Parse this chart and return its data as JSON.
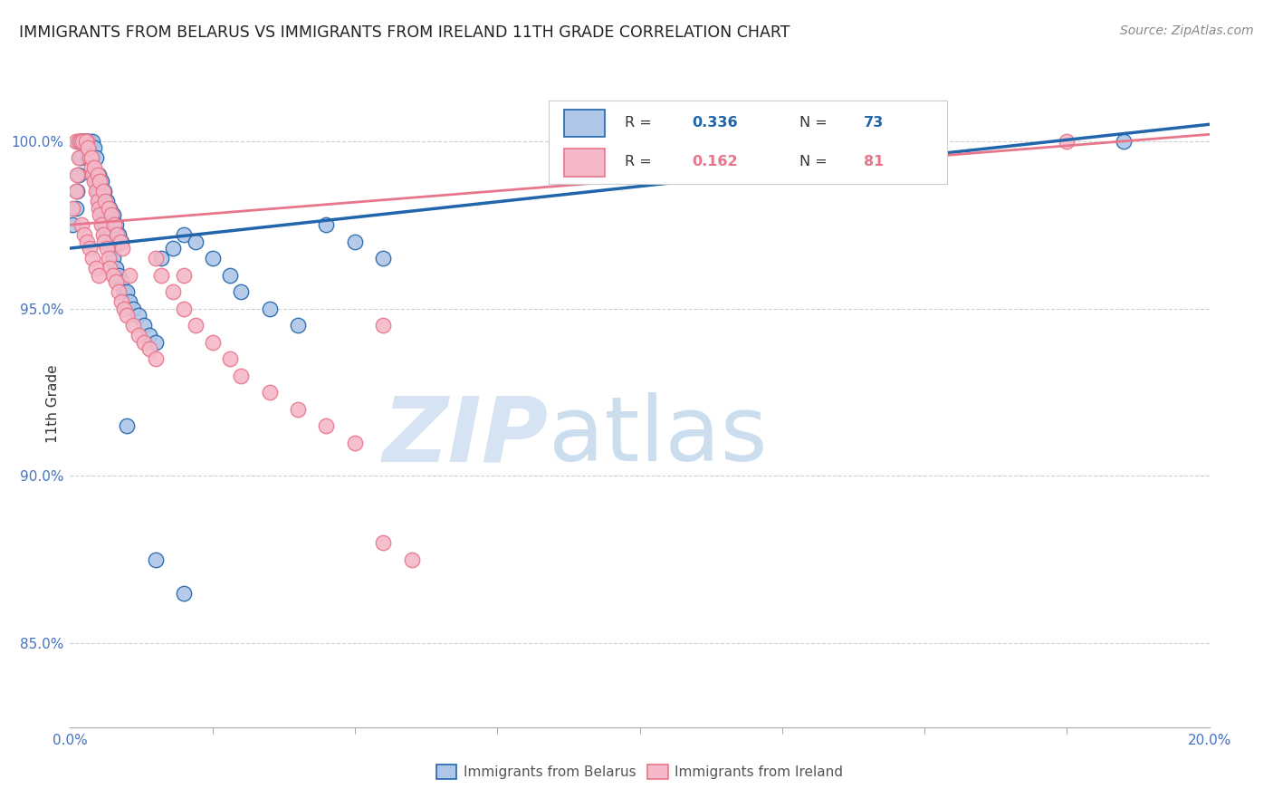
{
  "title": "IMMIGRANTS FROM BELARUS VS IMMIGRANTS FROM IRELAND 11TH GRADE CORRELATION CHART",
  "source": "Source: ZipAtlas.com",
  "ylabel": "11th Grade",
  "color_belarus": "#aec6e8",
  "color_ireland": "#f4b8c8",
  "color_line_belarus": "#2166ac",
  "color_line_ireland": "#e8768a",
  "color_ytick": "#4472c4",
  "watermark_zip": "ZIP",
  "watermark_atlas": "atlas",
  "xlim": [
    0.0,
    20.0
  ],
  "ylim": [
    82.5,
    101.8
  ],
  "ytick_vals": [
    85.0,
    90.0,
    95.0,
    100.0
  ],
  "ytick_labels": [
    "85.0%",
    "90.0%",
    "95.0%",
    "100.0%"
  ],
  "belarus_trend_x0": 0.0,
  "belarus_trend_y0": 96.8,
  "belarus_trend_x1": 20.0,
  "belarus_trend_y1": 100.5,
  "ireland_trend_x0": 0.0,
  "ireland_trend_y0": 97.5,
  "ireland_trend_x1": 20.0,
  "ireland_trend_y1": 100.2,
  "belarus_x": [
    0.05,
    0.1,
    0.12,
    0.15,
    0.18,
    0.2,
    0.22,
    0.25,
    0.28,
    0.3,
    0.32,
    0.35,
    0.38,
    0.4,
    0.42,
    0.45,
    0.48,
    0.5,
    0.52,
    0.55,
    0.58,
    0.6,
    0.65,
    0.68,
    0.7,
    0.72,
    0.75,
    0.8,
    0.85,
    0.9,
    0.95,
    1.0,
    1.05,
    1.1,
    1.2,
    1.3,
    1.4,
    1.5,
    1.6,
    1.8,
    2.0,
    2.2,
    2.5,
    2.8,
    3.0,
    3.5,
    4.0,
    4.5,
    5.0,
    5.5,
    0.15,
    0.2,
    0.25,
    0.3,
    0.35,
    0.4,
    0.42,
    0.45,
    0.5,
    0.55,
    0.6,
    0.65,
    0.7,
    0.75,
    0.8,
    0.85,
    0.9,
    1.0,
    1.5,
    2.0,
    11.0,
    13.0,
    18.5
  ],
  "belarus_y": [
    97.5,
    98.0,
    98.5,
    99.0,
    99.5,
    100.0,
    100.0,
    100.0,
    100.0,
    100.0,
    99.5,
    99.5,
    99.5,
    99.0,
    99.0,
    98.8,
    98.5,
    98.5,
    98.2,
    98.0,
    97.8,
    97.5,
    97.2,
    97.0,
    97.0,
    96.8,
    96.5,
    96.2,
    96.0,
    95.8,
    95.5,
    95.5,
    95.2,
    95.0,
    94.8,
    94.5,
    94.2,
    94.0,
    96.5,
    96.8,
    97.2,
    97.0,
    96.5,
    96.0,
    95.5,
    95.0,
    94.5,
    97.5,
    97.0,
    96.5,
    100.0,
    100.0,
    100.0,
    100.0,
    100.0,
    100.0,
    99.8,
    99.5,
    99.0,
    98.8,
    98.5,
    98.2,
    98.0,
    97.8,
    97.5,
    97.2,
    97.0,
    91.5,
    87.5,
    86.5,
    99.8,
    100.0,
    100.0
  ],
  "ireland_x": [
    0.05,
    0.1,
    0.12,
    0.15,
    0.18,
    0.2,
    0.22,
    0.25,
    0.28,
    0.3,
    0.32,
    0.35,
    0.38,
    0.4,
    0.42,
    0.45,
    0.48,
    0.5,
    0.52,
    0.55,
    0.58,
    0.6,
    0.65,
    0.68,
    0.7,
    0.75,
    0.8,
    0.85,
    0.9,
    0.95,
    1.0,
    1.1,
    1.2,
    1.3,
    1.4,
    1.5,
    1.6,
    1.8,
    2.0,
    2.2,
    2.5,
    2.8,
    3.0,
    3.5,
    4.0,
    4.5,
    5.0,
    5.5,
    6.0,
    0.1,
    0.15,
    0.18,
    0.22,
    0.28,
    0.32,
    0.38,
    0.42,
    0.48,
    0.52,
    0.58,
    0.62,
    0.68,
    0.72,
    0.78,
    0.82,
    0.88,
    0.92,
    1.05,
    1.5,
    2.0,
    5.5,
    14.5,
    17.5,
    0.2,
    0.25,
    0.3,
    0.35,
    0.4,
    0.45,
    0.5
  ],
  "ireland_y": [
    98.0,
    98.5,
    99.0,
    99.5,
    100.0,
    100.0,
    100.0,
    100.0,
    100.0,
    100.0,
    99.8,
    99.5,
    99.2,
    99.0,
    98.8,
    98.5,
    98.2,
    98.0,
    97.8,
    97.5,
    97.2,
    97.0,
    96.8,
    96.5,
    96.2,
    96.0,
    95.8,
    95.5,
    95.2,
    95.0,
    94.8,
    94.5,
    94.2,
    94.0,
    93.8,
    93.5,
    96.0,
    95.5,
    95.0,
    94.5,
    94.0,
    93.5,
    93.0,
    92.5,
    92.0,
    91.5,
    91.0,
    88.0,
    87.5,
    100.0,
    100.0,
    100.0,
    100.0,
    100.0,
    99.8,
    99.5,
    99.2,
    99.0,
    98.8,
    98.5,
    98.2,
    98.0,
    97.8,
    97.5,
    97.2,
    97.0,
    96.8,
    96.0,
    96.5,
    96.0,
    94.5,
    100.0,
    100.0,
    97.5,
    97.2,
    97.0,
    96.8,
    96.5,
    96.2,
    96.0
  ]
}
